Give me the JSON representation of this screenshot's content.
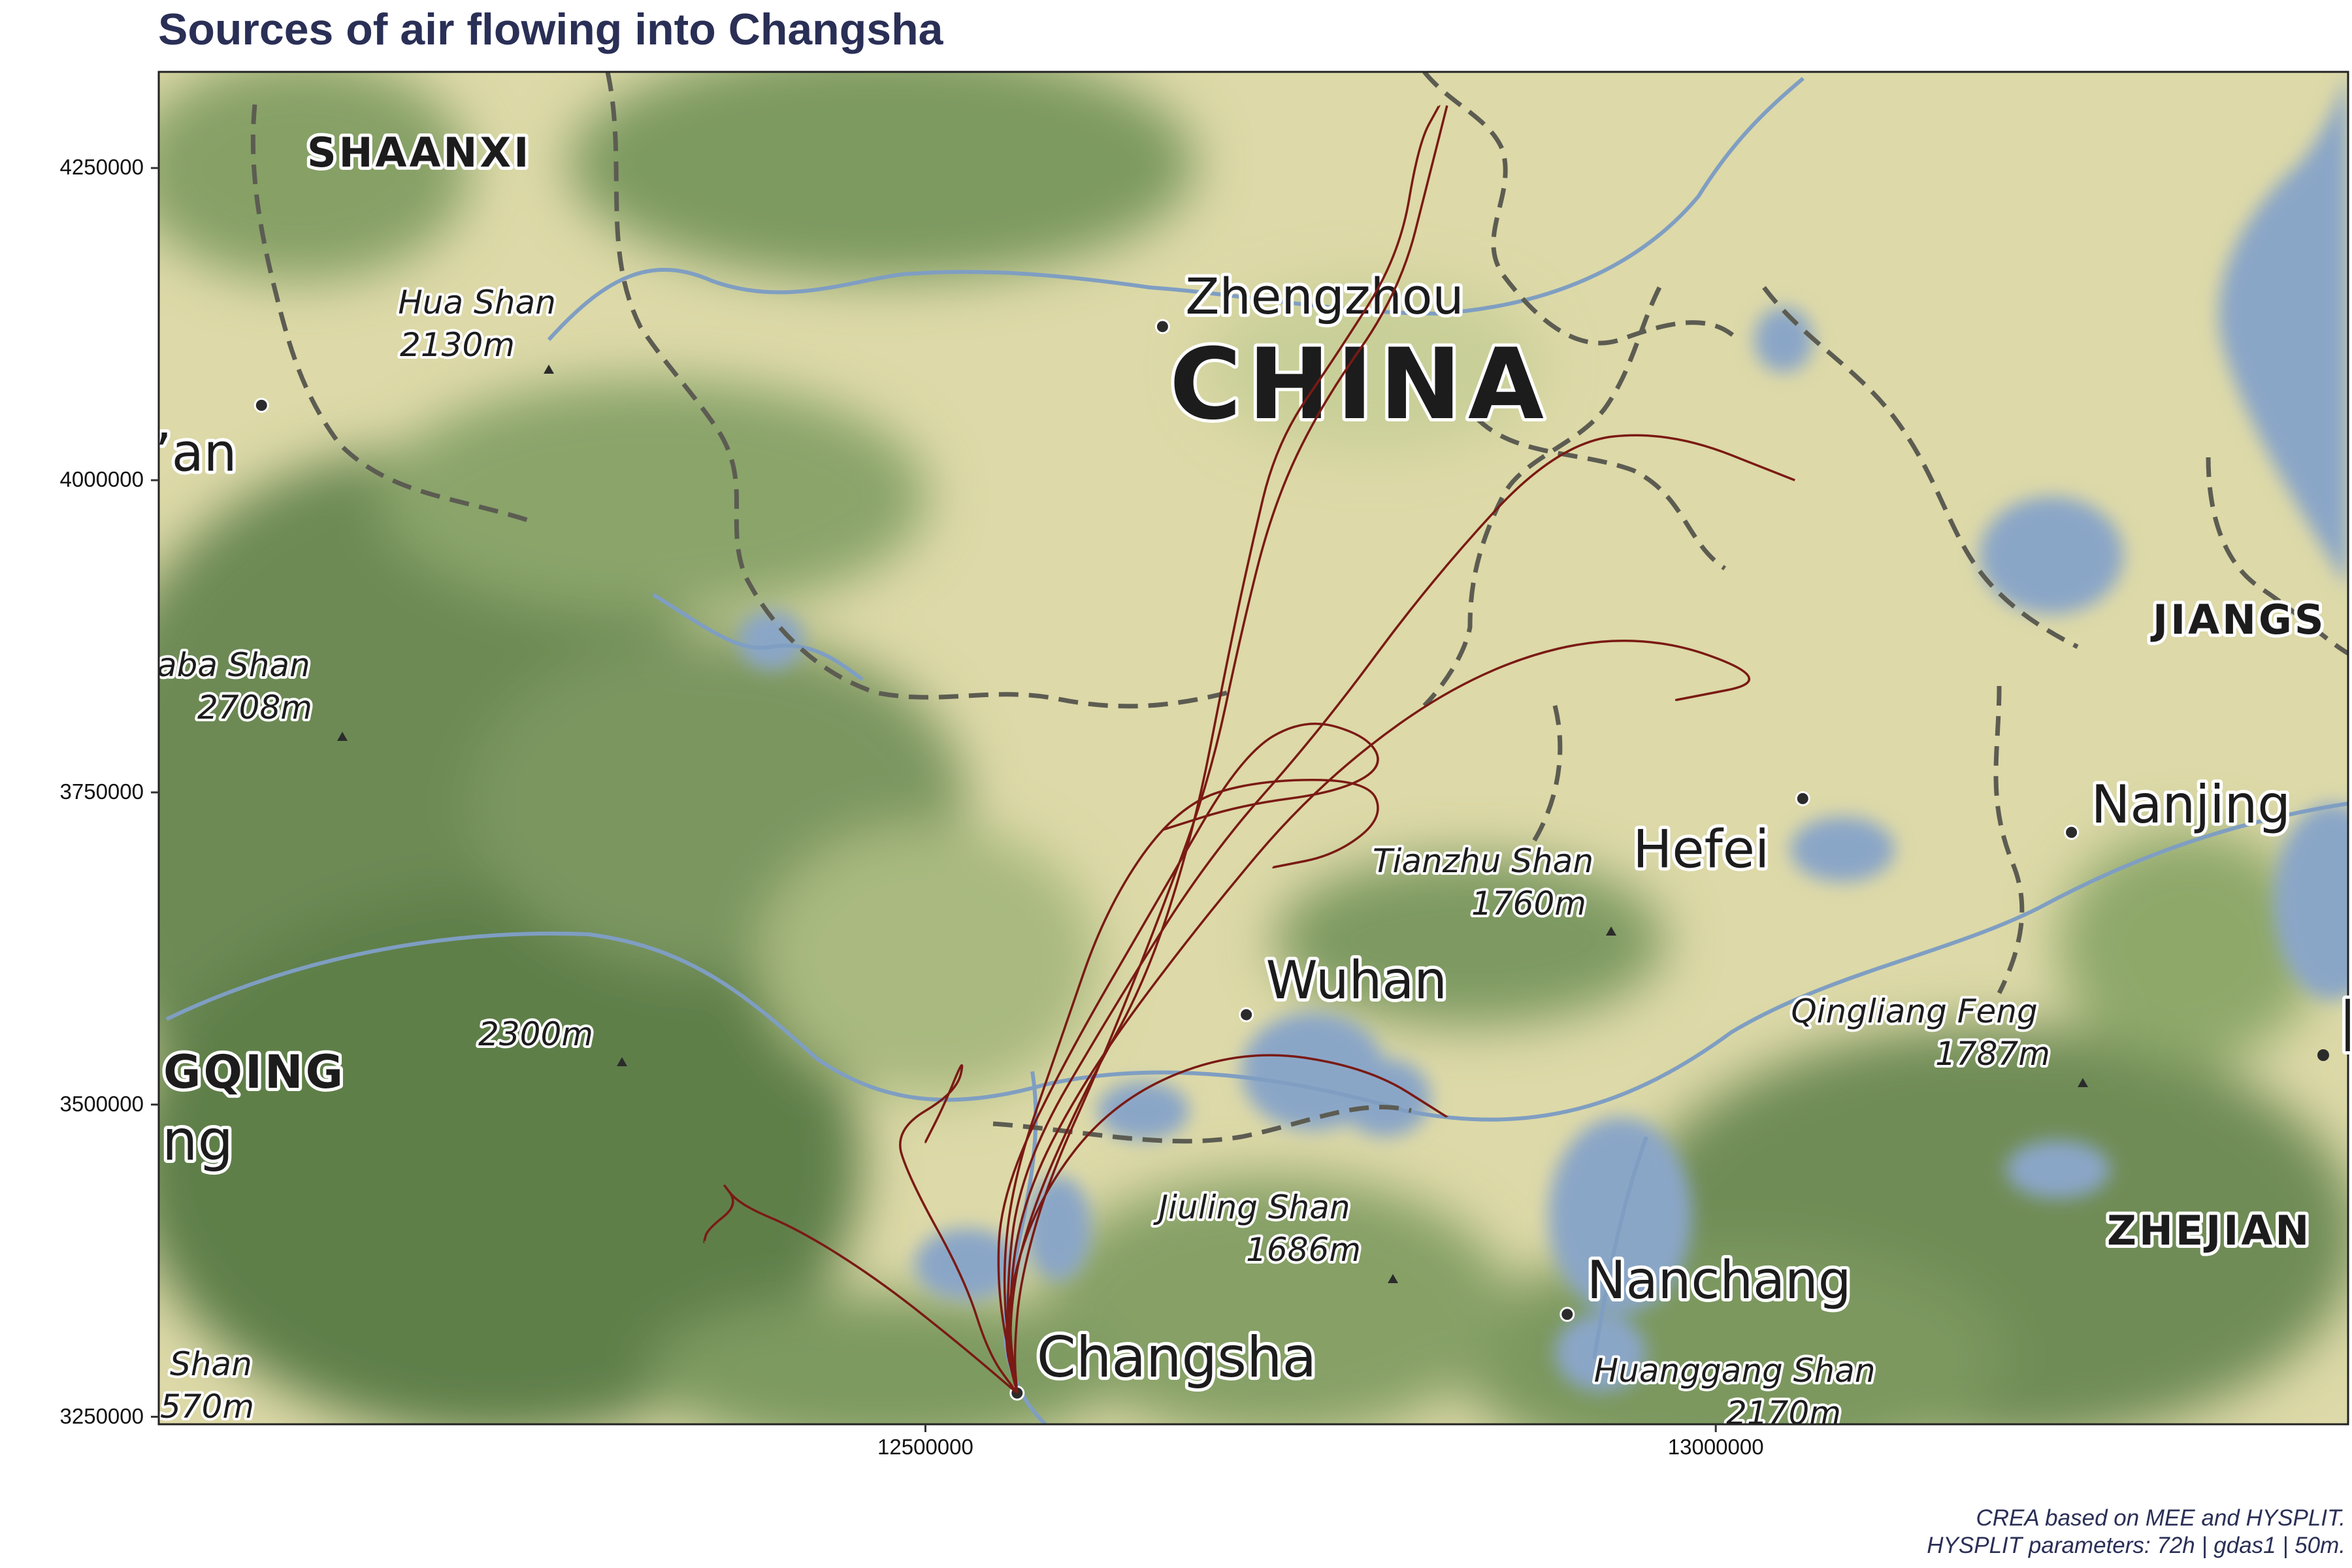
{
  "title": "Sources of air flowing into Changsha",
  "caption": {
    "line1": "CREA based on MEE and HYSPLIT.",
    "line2": "HYSPLIT parameters: 72h | gdas1 | 50m."
  },
  "axes": {
    "x_ticks": [
      {
        "label": "12500000",
        "value": 12500000
      },
      {
        "label": "13000000",
        "value": 13000000
      }
    ],
    "y_ticks": [
      {
        "label": "4250000",
        "value": 4250000
      },
      {
        "label": "4000000",
        "value": 4000000
      },
      {
        "label": "3750000",
        "value": 3750000
      },
      {
        "label": "3500000",
        "value": 3500000
      },
      {
        "label": "3250000",
        "value": 3250000
      }
    ]
  },
  "map": {
    "country_label": "CHINA",
    "provinces": [
      "SHAANXI",
      "JIANGS",
      "ZHEJIAN",
      "GQING"
    ],
    "cities": [
      {
        "name": "Zhengzhou",
        "x": 12650000,
        "y": 4123000
      },
      {
        "name": "Xi’an",
        "x": 12080000,
        "y": 4060000
      },
      {
        "name": "Hefei",
        "x": 13055000,
        "y": 3745000
      },
      {
        "name": "Nanjing",
        "x": 13225000,
        "y": 3718000
      },
      {
        "name": "Wuhan",
        "x": 12703000,
        "y": 3572000
      },
      {
        "name": "Nanchang",
        "x": 12906000,
        "y": 3332000
      },
      {
        "name": "Changsha",
        "x": 12558000,
        "y": 3269000
      }
    ],
    "peaks": [
      {
        "name": "Hua Shan",
        "elev": "2130m"
      },
      {
        "name": "aba Shan",
        "elev": "2708m"
      },
      {
        "name": "",
        "elev": "2300m"
      },
      {
        "name": "Tianzhu Shan",
        "elev": "1760m"
      },
      {
        "name": "Qingliang Feng",
        "elev": "1787m"
      },
      {
        "name": "Jiuling Shan",
        "elev": "1686m"
      },
      {
        "name": "Huanggang Shan",
        "elev": "2170m"
      },
      {
        "name": "Shan",
        "elev": "570m"
      }
    ],
    "fragment_label": "ng",
    "colors": {
      "trajectory": "#7a1a14",
      "lowland": "#ddd9a8",
      "mountain": "#6d8a55",
      "water": "#8aa6c7"
    }
  },
  "chart_data": {
    "type": "line",
    "title": "Sources of air flowing into Changsha",
    "xlim": [
      12015000,
      13400000
    ],
    "ylim": [
      3244000,
      4327000
    ],
    "xlabel": "",
    "ylabel": "",
    "origin": {
      "name": "Changsha",
      "x": 12558000,
      "y": 3269000
    },
    "series": [
      {
        "values": [
          [
            12558000,
            3269000
          ],
          [
            12556000,
            3300000
          ],
          [
            12560000,
            3360000
          ],
          [
            12578000,
            3440000
          ],
          [
            12610000,
            3530000
          ],
          [
            12645000,
            3640000
          ],
          [
            12680000,
            3760000
          ],
          [
            12700000,
            3880000
          ],
          [
            12720000,
            3980000
          ],
          [
            12750000,
            4060000
          ],
          [
            12800000,
            4150000
          ],
          [
            12820000,
            4250000
          ],
          [
            12830000,
            4300000
          ]
        ]
      },
      {
        "values": [
          [
            12558000,
            3269000
          ],
          [
            12552000,
            3320000
          ],
          [
            12562000,
            3400000
          ],
          [
            12600000,
            3510000
          ],
          [
            12640000,
            3600000
          ],
          [
            12670000,
            3720000
          ],
          [
            12690000,
            3850000
          ],
          [
            12705000,
            3940000
          ],
          [
            12722000,
            4030000
          ],
          [
            12760000,
            4100000
          ],
          [
            12800000,
            4180000
          ],
          [
            12812000,
            4270000
          ],
          [
            12825000,
            4300000
          ]
        ]
      },
      {
        "values": [
          [
            12558000,
            3269000
          ],
          [
            12540000,
            3300000
          ],
          [
            12525000,
            3360000
          ],
          [
            12490000,
            3440000
          ],
          [
            12480000,
            3480000
          ],
          [
            12520000,
            3510000
          ],
          [
            12525000,
            3540000
          ],
          [
            12512000,
            3500000
          ],
          [
            12500000,
            3470000
          ]
        ]
      },
      {
        "values": [
          [
            12558000,
            3269000
          ],
          [
            12520000,
            3310000
          ],
          [
            12470000,
            3360000
          ],
          [
            12420000,
            3400000
          ],
          [
            12382000,
            3420000
          ],
          [
            12370000,
            3440000
          ],
          [
            12382000,
            3420000
          ],
          [
            12362000,
            3400000
          ],
          [
            12360000,
            3390000
          ]
        ]
      },
      {
        "values": [
          [
            12558000,
            3269000
          ],
          [
            12548000,
            3320000
          ],
          [
            12568000,
            3420000
          ],
          [
            12620000,
            3505000
          ],
          [
            12700000,
            3545000
          ],
          [
            12780000,
            3530000
          ],
          [
            12830000,
            3490000
          ]
        ]
      },
      {
        "values": [
          [
            12558000,
            3269000
          ],
          [
            12552000,
            3330000
          ],
          [
            12560000,
            3420000
          ],
          [
            12600000,
            3520000
          ],
          [
            12670000,
            3640000
          ],
          [
            12750000,
            3760000
          ],
          [
            12850000,
            3850000
          ],
          [
            12950000,
            3880000
          ],
          [
            13040000,
            3840000
          ],
          [
            12975000,
            3824000
          ]
        ]
      },
      {
        "values": [
          [
            12558000,
            3269000
          ],
          [
            12545000,
            3350000
          ],
          [
            12548000,
            3430000
          ],
          [
            12590000,
            3540000
          ],
          [
            12650000,
            3670000
          ],
          [
            12700000,
            3780000
          ],
          [
            12740000,
            3810000
          ],
          [
            12780000,
            3795000
          ],
          [
            12790000,
            3770000
          ],
          [
            12760000,
            3750000
          ],
          [
            12700000,
            3740000
          ],
          [
            12650000,
            3720000
          ]
        ]
      },
      {
        "values": [
          [
            12558000,
            3269000
          ],
          [
            12548000,
            3350000
          ],
          [
            12555000,
            3440000
          ],
          [
            12585000,
            3550000
          ],
          [
            12615000,
            3660000
          ],
          [
            12660000,
            3740000
          ],
          [
            12710000,
            3760000
          ],
          [
            12780000,
            3760000
          ],
          [
            12790000,
            3730000
          ],
          [
            12760000,
            3700000
          ],
          [
            12720000,
            3690000
          ]
        ]
      },
      {
        "values": [
          [
            12558000,
            3269000
          ],
          [
            12550000,
            3340000
          ],
          [
            12560000,
            3450000
          ],
          [
            12620000,
            3580000
          ],
          [
            12680000,
            3700000
          ],
          [
            12750000,
            3800000
          ],
          [
            12820000,
            3920000
          ],
          [
            12900000,
            4030000
          ],
          [
            12970000,
            4040000
          ],
          [
            13050000,
            4000000
          ]
        ]
      }
    ]
  }
}
